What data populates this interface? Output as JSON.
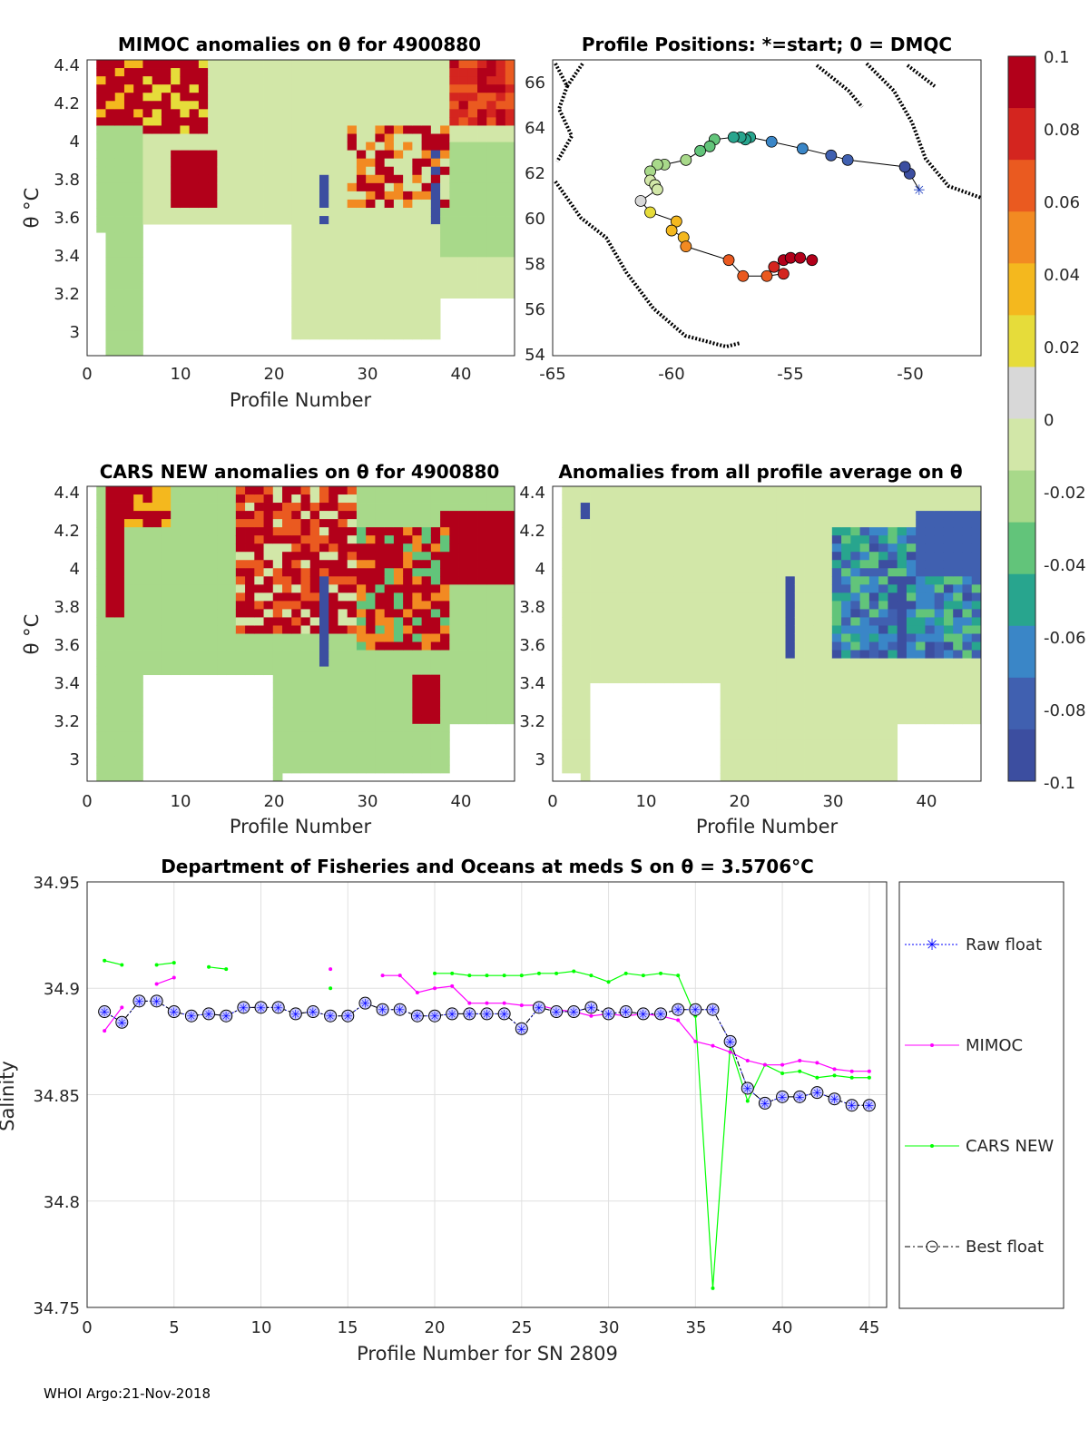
{
  "footer": "WHOI Argo:21-Nov-2018",
  "colorbar": {
    "ticks": [
      "0.1",
      "0.08",
      "0.06",
      "0.04",
      "0.02",
      "0",
      "-0.02",
      "-0.04",
      "-0.06",
      "-0.08",
      "-0.1"
    ],
    "colors": [
      "#b2001a",
      "#d4251f",
      "#ea5a20",
      "#f28a22",
      "#f4b81e",
      "#e6dc3a",
      "#d8d8d8",
      "#d2e7a8",
      "#a8d98a",
      "#62c47a",
      "#28a58e",
      "#3a86c7",
      "#4060b0",
      "#3c4ea0"
    ]
  },
  "panel1": {
    "title": "MIMOC anomalies on θ  for 4900880",
    "ylabel": "θ °C",
    "xlabel": "Profile Number",
    "yticks": [
      "4.4",
      "4.2",
      "4",
      "3.8",
      "3.6",
      "3.4",
      "3.2",
      "3"
    ],
    "xticks": [
      "0",
      "10",
      "20",
      "30",
      "40"
    ]
  },
  "panel2": {
    "title": "Profile Positions: *=start; 0 = DMQC",
    "yticks": [
      "66",
      "64",
      "62",
      "60",
      "58",
      "56",
      "54"
    ],
    "xticks": [
      "-65",
      "-60",
      "-55",
      "-50"
    ]
  },
  "panel3": {
    "title": "CARS NEW anomalies on θ for 4900880",
    "ylabel": "θ °C",
    "xlabel": "Profile Number",
    "yticks": [
      "4.4",
      "4.2",
      "4",
      "3.8",
      "3.6",
      "3.4",
      "3.2",
      "3"
    ],
    "xticks": [
      "0",
      "10",
      "20",
      "30",
      "40"
    ]
  },
  "panel4": {
    "title": "Anomalies from all profile average on θ",
    "xlabel": "Profile Number",
    "yticks": [
      "4.4",
      "4.2",
      "4",
      "3.8",
      "3.6",
      "3.4",
      "3.2",
      "3"
    ],
    "xticks": [
      "0",
      "10",
      "20",
      "30",
      "40"
    ]
  },
  "chart_data": {
    "type": "line",
    "title": "Department of Fisheries and Oceans at meds S on θ = 3.5706°C",
    "xlabel": "Profile Number for SN 2809",
    "ylabel": "Salinity",
    "xlim": [
      0,
      46
    ],
    "ylim": [
      34.75,
      34.95
    ],
    "xticks": [
      "0",
      "5",
      "10",
      "15",
      "20",
      "25",
      "30",
      "35",
      "40",
      "45"
    ],
    "yticks": [
      "34.95",
      "34.9",
      "34.85",
      "34.8",
      "34.75"
    ],
    "series": [
      {
        "name": "Raw float",
        "color": "#0000ff",
        "x": [
          1,
          2,
          3,
          4,
          5,
          6,
          7,
          8,
          9,
          10,
          11,
          12,
          13,
          14,
          15,
          16,
          17,
          18,
          19,
          20,
          21,
          22,
          23,
          24,
          25,
          26,
          27,
          28,
          29,
          30,
          31,
          32,
          33,
          34,
          35,
          36,
          37,
          38,
          39,
          40,
          41,
          42,
          43,
          44,
          45
        ],
        "y": [
          34.889,
          34.884,
          34.894,
          34.894,
          34.889,
          34.887,
          34.888,
          34.887,
          34.891,
          34.891,
          34.891,
          34.888,
          34.889,
          34.887,
          34.887,
          34.893,
          34.89,
          34.89,
          34.887,
          34.887,
          34.888,
          34.888,
          34.888,
          34.888,
          34.881,
          34.891,
          34.889,
          34.889,
          34.891,
          34.888,
          34.889,
          34.888,
          34.888,
          34.89,
          34.89,
          34.89,
          34.875,
          34.853,
          34.846,
          34.849,
          34.849,
          34.851,
          34.848,
          34.845,
          34.845
        ]
      },
      {
        "name": "MIMOC",
        "color": "#ff00ff",
        "x": [
          1,
          2,
          null,
          4,
          5,
          null,
          14,
          null,
          17,
          18,
          19,
          20,
          21,
          22,
          23,
          24,
          25,
          26,
          27,
          28,
          29,
          30,
          31,
          32,
          33,
          34,
          35,
          36,
          37,
          38,
          39,
          40,
          41,
          42,
          43,
          44,
          45
        ],
        "y": [
          34.88,
          34.891,
          null,
          34.902,
          34.905,
          null,
          34.909,
          null,
          34.906,
          34.906,
          34.898,
          34.9,
          34.901,
          34.893,
          34.893,
          34.893,
          34.892,
          34.892,
          34.89,
          34.889,
          34.887,
          34.888,
          34.887,
          34.888,
          34.887,
          34.885,
          34.875,
          34.873,
          34.87,
          34.866,
          34.864,
          34.864,
          34.866,
          34.865,
          34.862,
          34.861,
          34.861
        ]
      },
      {
        "name": "CARS NEW",
        "color": "#00ff00",
        "x": [
          1,
          2,
          null,
          4,
          5,
          null,
          7,
          8,
          null,
          14,
          null,
          20,
          21,
          22,
          23,
          24,
          25,
          26,
          27,
          28,
          29,
          30,
          31,
          32,
          33,
          34,
          35,
          36,
          37,
          38,
          39,
          40,
          41,
          42,
          43,
          44,
          45
        ],
        "y": [
          34.913,
          34.911,
          null,
          34.911,
          34.912,
          null,
          34.91,
          34.909,
          null,
          34.9,
          null,
          34.907,
          34.907,
          34.906,
          34.906,
          34.906,
          34.906,
          34.907,
          34.907,
          34.908,
          34.906,
          34.903,
          34.907,
          34.906,
          34.907,
          34.906,
          34.887,
          34.759,
          34.873,
          34.847,
          34.864,
          34.86,
          34.861,
          34.858,
          34.859,
          34.858,
          34.858
        ]
      },
      {
        "name": "Best float",
        "color": "#000000",
        "x": [
          1,
          2,
          3,
          4,
          5,
          6,
          7,
          8,
          9,
          10,
          11,
          12,
          13,
          14,
          15,
          16,
          17,
          18,
          19,
          20,
          21,
          22,
          23,
          24,
          25,
          26,
          27,
          28,
          29,
          30,
          31,
          32,
          33,
          34,
          35,
          36,
          37,
          38,
          39,
          40,
          41,
          42,
          43,
          44,
          45
        ],
        "y": [
          34.889,
          34.884,
          34.894,
          34.894,
          34.889,
          34.887,
          34.888,
          34.887,
          34.891,
          34.891,
          34.891,
          34.888,
          34.889,
          34.887,
          34.887,
          34.893,
          34.89,
          34.89,
          34.887,
          34.887,
          34.888,
          34.888,
          34.888,
          34.888,
          34.881,
          34.891,
          34.889,
          34.889,
          34.891,
          34.888,
          34.889,
          34.888,
          34.888,
          34.89,
          34.89,
          34.89,
          34.875,
          34.853,
          34.846,
          34.849,
          34.849,
          34.851,
          34.848,
          34.845,
          34.845
        ]
      }
    ],
    "legend": [
      "Raw float",
      "MIMOC",
      "CARS NEW",
      "Best float"
    ]
  },
  "map_data": {
    "type": "scatter",
    "xlim": [
      -65,
      -47
    ],
    "ylim": [
      54,
      67
    ],
    "track": [
      {
        "lon": -49.6,
        "lat": 61.3,
        "v": -0.1
      },
      {
        "lon": -50.0,
        "lat": 62.0,
        "v": -0.09
      },
      {
        "lon": -50.2,
        "lat": 62.3,
        "v": -0.09
      },
      {
        "lon": -52.6,
        "lat": 62.6,
        "v": -0.085
      },
      {
        "lon": -53.3,
        "lat": 62.8,
        "v": -0.08
      },
      {
        "lon": -54.5,
        "lat": 63.1,
        "v": -0.07
      },
      {
        "lon": -55.8,
        "lat": 63.4,
        "v": -0.06
      },
      {
        "lon": -56.7,
        "lat": 63.6,
        "v": -0.055
      },
      {
        "lon": -56.9,
        "lat": 63.5,
        "v": -0.05
      },
      {
        "lon": -57.1,
        "lat": 63.6,
        "v": -0.05
      },
      {
        "lon": -57.4,
        "lat": 63.6,
        "v": -0.045
      },
      {
        "lon": -58.2,
        "lat": 63.5,
        "v": -0.04
      },
      {
        "lon": -58.4,
        "lat": 63.2,
        "v": -0.035
      },
      {
        "lon": -58.8,
        "lat": 63.0,
        "v": -0.03
      },
      {
        "lon": -59.4,
        "lat": 62.6,
        "v": -0.025
      },
      {
        "lon": -60.3,
        "lat": 62.4,
        "v": -0.02
      },
      {
        "lon": -60.6,
        "lat": 62.4,
        "v": -0.02
      },
      {
        "lon": -60.9,
        "lat": 62.1,
        "v": -0.015
      },
      {
        "lon": -60.9,
        "lat": 61.7,
        "v": -0.01
      },
      {
        "lon": -60.7,
        "lat": 61.5,
        "v": -0.01
      },
      {
        "lon": -60.6,
        "lat": 61.3,
        "v": -0.005
      },
      {
        "lon": -61.3,
        "lat": 60.8,
        "v": 0.01
      },
      {
        "lon": -60.9,
        "lat": 60.3,
        "v": 0.02
      },
      {
        "lon": -59.8,
        "lat": 59.9,
        "v": 0.03
      },
      {
        "lon": -60.0,
        "lat": 59.5,
        "v": 0.035
      },
      {
        "lon": -59.5,
        "lat": 59.2,
        "v": 0.04
      },
      {
        "lon": -59.4,
        "lat": 58.8,
        "v": 0.045
      },
      {
        "lon": -57.6,
        "lat": 58.2,
        "v": 0.06
      },
      {
        "lon": -57.0,
        "lat": 57.5,
        "v": 0.065
      },
      {
        "lon": -56.0,
        "lat": 57.5,
        "v": 0.07
      },
      {
        "lon": -55.3,
        "lat": 57.6,
        "v": 0.08
      },
      {
        "lon": -55.7,
        "lat": 57.9,
        "v": 0.085
      },
      {
        "lon": -55.3,
        "lat": 58.2,
        "v": 0.09
      },
      {
        "lon": -55.0,
        "lat": 58.3,
        "v": 0.095
      },
      {
        "lon": -54.6,
        "lat": 58.3,
        "v": 0.1
      },
      {
        "lon": -54.1,
        "lat": 58.2,
        "v": 0.1
      }
    ]
  }
}
